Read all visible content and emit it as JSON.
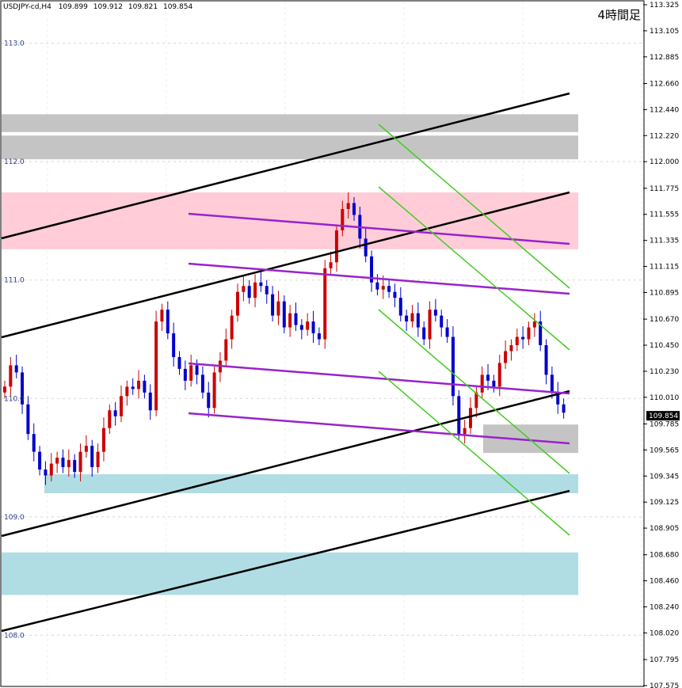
{
  "header": {
    "symbol": "USDJPY-cd,H4",
    "ohlc": [
      "109.899",
      "109.912",
      "109.821",
      "109.854"
    ]
  },
  "timeframe_label": "4時間足",
  "chart_data": {
    "type": "candlestick",
    "symbol": "USDJPY-cd",
    "timeframe": "H4",
    "ylim": [
      107.575,
      113.325
    ],
    "right_axis_ticks": [
      "113.325",
      "113.105",
      "112.885",
      "112.660",
      "112.440",
      "112.220",
      "112.000",
      "111.775",
      "111.555",
      "111.335",
      "111.115",
      "110.895",
      "110.670",
      "110.450",
      "110.230",
      "110.010",
      "109.785",
      "109.565",
      "109.345",
      "109.125",
      "108.905",
      "108.680",
      "108.460",
      "108.240",
      "108.020",
      "107.795",
      "107.575"
    ],
    "left_levels": [
      "113.0",
      "112.0",
      "111.0",
      "110.0",
      "109.0",
      "108.0"
    ],
    "current_price": "109.854",
    "colors": {
      "bull": "#cc0000",
      "bear": "#0000cc",
      "zone_gray": "#c4c4c4",
      "zone_pink": "#ffccd8",
      "zone_blue": "#b0dde4",
      "trend_black": "#000000",
      "channel_purple": "#9922cc",
      "channel_green": "#44cc22"
    },
    "candles_path": [
      [
        110.1,
        0
      ],
      [
        110.28,
        1
      ],
      [
        110.22,
        2
      ],
      [
        109.95,
        3
      ],
      [
        109.7,
        4
      ],
      [
        109.55,
        5
      ],
      [
        109.4,
        6
      ],
      [
        109.35,
        7
      ],
      [
        109.45,
        8
      ],
      [
        109.5,
        9
      ],
      [
        109.42,
        10
      ],
      [
        109.48,
        11
      ],
      [
        109.38,
        12
      ],
      [
        109.55,
        13
      ],
      [
        109.6,
        14
      ],
      [
        109.42,
        15
      ],
      [
        109.55,
        16
      ],
      [
        109.75,
        17
      ],
      [
        109.9,
        18
      ],
      [
        109.85,
        19
      ],
      [
        110.02,
        20
      ],
      [
        110.1,
        21
      ],
      [
        110.08,
        22
      ],
      [
        110.15,
        23
      ],
      [
        110.05,
        24
      ],
      [
        109.9,
        25
      ],
      [
        110.65,
        26
      ],
      [
        110.75,
        27
      ],
      [
        110.55,
        28
      ],
      [
        110.35,
        29
      ],
      [
        110.25,
        30
      ],
      [
        110.15,
        31
      ],
      [
        110.28,
        32
      ],
      [
        110.2,
        33
      ],
      [
        110.05,
        34
      ],
      [
        109.92,
        35
      ],
      [
        110.22,
        36
      ],
      [
        110.32,
        37
      ],
      [
        110.5,
        38
      ],
      [
        110.7,
        39
      ],
      [
        110.9,
        40
      ],
      [
        110.95,
        41
      ],
      [
        110.85,
        42
      ],
      [
        110.98,
        43
      ],
      [
        110.95,
        44
      ],
      [
        110.88,
        45
      ],
      [
        110.7,
        46
      ],
      [
        110.82,
        47
      ],
      [
        110.6,
        48
      ],
      [
        110.72,
        49
      ],
      [
        110.62,
        50
      ],
      [
        110.58,
        51
      ],
      [
        110.65,
        52
      ],
      [
        110.55,
        53
      ],
      [
        110.5,
        54
      ],
      [
        111.1,
        55
      ],
      [
        111.15,
        56
      ],
      [
        111.42,
        57
      ],
      [
        111.6,
        58
      ],
      [
        111.65,
        59
      ],
      [
        111.55,
        60
      ],
      [
        111.35,
        61
      ],
      [
        111.2,
        62
      ],
      [
        110.98,
        63
      ],
      [
        110.92,
        64
      ],
      [
        110.95,
        65
      ],
      [
        110.9,
        66
      ],
      [
        110.85,
        67
      ],
      [
        110.7,
        68
      ],
      [
        110.65,
        69
      ],
      [
        110.72,
        70
      ],
      [
        110.6,
        71
      ],
      [
        110.5,
        72
      ],
      [
        110.75,
        73
      ],
      [
        110.7,
        74
      ],
      [
        110.6,
        75
      ],
      [
        110.52,
        76
      ],
      [
        110.02,
        77
      ],
      [
        109.7,
        78
      ],
      [
        109.75,
        79
      ],
      [
        109.92,
        80
      ],
      [
        110.05,
        81
      ],
      [
        110.2,
        82
      ],
      [
        110.15,
        83
      ],
      [
        110.1,
        84
      ],
      [
        110.3,
        85
      ],
      [
        110.4,
        86
      ],
      [
        110.45,
        87
      ],
      [
        110.52,
        88
      ],
      [
        110.5,
        89
      ],
      [
        110.6,
        90
      ],
      [
        110.65,
        91
      ],
      [
        110.45,
        92
      ],
      [
        110.2,
        93
      ],
      [
        110.05,
        94
      ],
      [
        109.95,
        95
      ],
      [
        109.88,
        96
      ]
    ],
    "zones": [
      {
        "type": "gray",
        "from": 112.25,
        "to": 112.4
      },
      {
        "type": "gray",
        "from": 112.02,
        "to": 112.22
      },
      {
        "type": "pink",
        "from": 111.26,
        "to": 111.74
      },
      {
        "type": "gray",
        "from": 109.54,
        "to": 109.78
      },
      {
        "type": "blue",
        "from": 109.2,
        "to": 109.36
      },
      {
        "type": "blue",
        "from": 108.34,
        "to": 108.7
      }
    ]
  }
}
